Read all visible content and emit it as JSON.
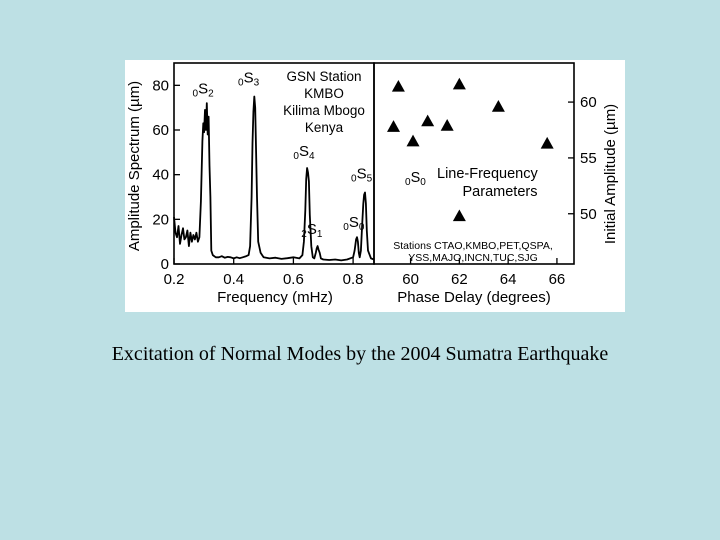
{
  "caption": "Excitation of Normal Modes by the 2004 Sumatra Earthquake",
  "colors": {
    "background": "#bde0e4",
    "panel": "#ffffff",
    "ink": "#000000"
  },
  "chart_data": [
    {
      "type": "line",
      "panel": "spectrum",
      "xlabel": "Frequency (mHz)",
      "ylabel": "Amplitude Spectrum (µm)",
      "xlim": [
        0.2,
        0.87
      ],
      "ylim": [
        0,
        90
      ],
      "xticks": [
        "0.2",
        "0.4",
        "0.6",
        "0.8"
      ],
      "yticks": [
        "0",
        "20",
        "40",
        "60",
        "80"
      ],
      "station_block": [
        "GSN Station",
        "KMBO",
        "Kilima Mbogo",
        "Kenya"
      ],
      "peak_labels": [
        {
          "pre": "0",
          "main": "S",
          "sub": "2",
          "freq": 0.309,
          "amp": 71
        },
        {
          "pre": "0",
          "main": "S",
          "sub": "3",
          "freq": 0.468,
          "amp": 75
        },
        {
          "pre": "0",
          "main": "S",
          "sub": "4",
          "freq": 0.647,
          "amp": 43
        },
        {
          "pre": "2",
          "main": "S",
          "sub": "1",
          "freq": 0.68,
          "amp": 8
        },
        {
          "pre": "0",
          "main": "S",
          "sub": "0",
          "freq": 0.814,
          "amp": 12
        },
        {
          "pre": "0",
          "main": "S",
          "sub": "5",
          "freq": 0.84,
          "amp": 32
        }
      ],
      "series": [
        {
          "name": "KMBO amplitude spectrum",
          "x": [
            0.2,
            0.205,
            0.21,
            0.215,
            0.22,
            0.225,
            0.23,
            0.235,
            0.24,
            0.245,
            0.25,
            0.255,
            0.26,
            0.265,
            0.27,
            0.275,
            0.28,
            0.285,
            0.29,
            0.295,
            0.298,
            0.301,
            0.304,
            0.307,
            0.31,
            0.313,
            0.316,
            0.319,
            0.322,
            0.325,
            0.33,
            0.34,
            0.35,
            0.36,
            0.37,
            0.38,
            0.39,
            0.4,
            0.41,
            0.42,
            0.43,
            0.44,
            0.45,
            0.455,
            0.46,
            0.463,
            0.466,
            0.469,
            0.472,
            0.475,
            0.478,
            0.482,
            0.49,
            0.5,
            0.52,
            0.54,
            0.56,
            0.58,
            0.6,
            0.62,
            0.63,
            0.635,
            0.64,
            0.643,
            0.646,
            0.649,
            0.652,
            0.655,
            0.66,
            0.665,
            0.67,
            0.675,
            0.678,
            0.681,
            0.684,
            0.688,
            0.692,
            0.7,
            0.72,
            0.74,
            0.76,
            0.78,
            0.8,
            0.805,
            0.81,
            0.813,
            0.816,
            0.819,
            0.822,
            0.826,
            0.83,
            0.834,
            0.837,
            0.84,
            0.843,
            0.846,
            0.85,
            0.86,
            0.87
          ],
          "y": [
            21,
            14,
            12,
            17,
            9,
            13,
            16,
            11,
            12,
            15,
            8,
            14,
            10,
            13,
            11,
            14,
            10,
            12,
            28,
            55,
            63,
            59,
            69,
            60,
            72,
            58,
            66,
            44,
            30,
            6,
            4,
            3,
            3,
            3.5,
            2.8,
            3.2,
            3,
            2.5,
            3,
            2.6,
            3,
            3.4,
            4,
            8,
            30,
            54,
            68,
            75,
            70,
            50,
            30,
            10,
            5,
            3,
            2.5,
            2.8,
            2.3,
            2.6,
            3,
            2.5,
            4,
            10,
            24,
            38,
            43,
            41,
            37,
            22,
            8,
            3,
            2.5,
            5,
            7,
            8,
            6.5,
            5,
            2.5,
            2,
            1.8,
            2,
            1.6,
            2,
            3,
            6,
            11,
            12,
            10,
            5,
            3,
            6,
            17,
            27,
            31,
            32,
            27,
            15,
            6,
            2.5,
            2
          ]
        }
      ]
    },
    {
      "type": "scatter",
      "panel": "line-frequency",
      "marker": "triangle",
      "xlabel": "Phase Delay (degrees)",
      "ylabel": "Initial Amplitude (µm)",
      "xlim": [
        58.5,
        66.7
      ],
      "ylim": [
        45.5,
        63.5
      ],
      "xticks": [
        "60",
        "62",
        "64",
        "66"
      ],
      "yticks": [
        "50",
        "55",
        "60"
      ],
      "title_lines": [
        "Line-Frequency",
        "Parameters"
      ],
      "title_symbol": {
        "pre": "0",
        "main": "S",
        "sub": "0"
      },
      "stations_lines": [
        "Stations CTAO,KMBO,PET,QSPA,",
        "YSS,MAJO,INCN,TUC,SJG"
      ],
      "points": [
        {
          "x": 59.5,
          "y": 61.4
        },
        {
          "x": 62.0,
          "y": 61.6
        },
        {
          "x": 63.6,
          "y": 59.6
        },
        {
          "x": 59.3,
          "y": 57.8
        },
        {
          "x": 60.7,
          "y": 58.3
        },
        {
          "x": 61.5,
          "y": 57.9
        },
        {
          "x": 60.1,
          "y": 56.5
        },
        {
          "x": 65.6,
          "y": 56.3
        },
        {
          "x": 62.0,
          "y": 49.8
        }
      ]
    }
  ]
}
